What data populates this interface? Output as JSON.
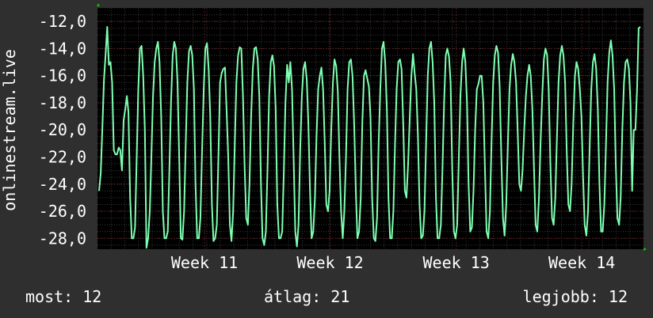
{
  "chart_data": {
    "type": "line",
    "ylabel": "onlinestream.live",
    "ylim": [
      -28.8,
      -11.0
    ],
    "yticks": [
      -12.0,
      -14.0,
      -16.0,
      -18.0,
      -20.0,
      -22.0,
      -24.0,
      -26.0,
      -28.0
    ],
    "ytick_labels": [
      "-12,0",
      "-14,0",
      "-16,0",
      "-18,0",
      "-20,0",
      "-22,0",
      "-24,0",
      "-26,0",
      "-28,0"
    ],
    "xticks": [
      {
        "label": "Week 11",
        "pos": 0.196
      },
      {
        "label": "Week 12",
        "pos": 0.426
      },
      {
        "label": "Week 13",
        "pos": 0.657
      },
      {
        "label": "Week 14",
        "pos": 0.887
      }
    ],
    "grid": true,
    "series": [
      {
        "color": "#7fffb2",
        "values": [
          -24.5,
          -23.2,
          -20.0,
          -16.3,
          -14.4,
          -12.4,
          -15.2,
          -15.0,
          -16.5,
          -21.5,
          -21.8,
          -21.8,
          -21.3,
          -21.5,
          -23.0,
          -19.3,
          -18.5,
          -17.5,
          -18.7,
          -25.0,
          -28.0,
          -28.0,
          -27.2,
          -22.0,
          -17.0,
          -14.0,
          -13.8,
          -16.0,
          -20.0,
          -28.7,
          -28.0,
          -26.0,
          -22.0,
          -17.5,
          -15.0,
          -14.0,
          -13.5,
          -15.0,
          -19.0,
          -26.0,
          -28.0,
          -28.0,
          -27.5,
          -23.0,
          -18.0,
          -14.5,
          -13.5,
          -14.0,
          -16.5,
          -22.0,
          -28.0,
          -28.1,
          -26.0,
          -21.0,
          -16.5,
          -14.2,
          -13.8,
          -14.5,
          -17.0,
          -24.0,
          -28.0,
          -28.0,
          -26.5,
          -21.5,
          -17.0,
          -14.0,
          -13.6,
          -15.5,
          -19.0,
          -25.5,
          -28.2,
          -28.0,
          -27.0,
          -22.0,
          -16.5,
          -15.8,
          -15.5,
          -15.4,
          -18.5,
          -22.0,
          -27.0,
          -28.2,
          -26.0,
          -21.0,
          -16.5,
          -14.5,
          -13.9,
          -14.0,
          -17.5,
          -22.5,
          -26.5,
          -27.0,
          -24.0,
          -19.0,
          -15.5,
          -14.0,
          -13.9,
          -14.8,
          -17.5,
          -24.0,
          -28.0,
          -28.5,
          -27.5,
          -23.0,
          -17.5,
          -15.0,
          -14.5,
          -15.3,
          -18.5,
          -25.5,
          -28.0,
          -28.0,
          -27.5,
          -23.0,
          -18.0,
          -15.2,
          -16.5,
          -15.0,
          -17.0,
          -22.0,
          -27.5,
          -28.6,
          -27.0,
          -21.5,
          -17.5,
          -15.5,
          -15.0,
          -16.3,
          -19.5,
          -24.5,
          -28.0,
          -27.5,
          -25.0,
          -20.5,
          -17.0,
          -16.0,
          -15.4,
          -17.0,
          -21.0,
          -25.5,
          -26.0,
          -24.5,
          -20.0,
          -16.5,
          -14.8,
          -15.3,
          -17.2,
          -22.0,
          -26.0,
          -28.0,
          -26.0,
          -22.0,
          -17.0,
          -15.0,
          -14.8,
          -16.0,
          -19.5,
          -24.5,
          -28.0,
          -27.5,
          -25.0,
          -19.5,
          -16.0,
          -15.6,
          -16.2,
          -16.8,
          -19.0,
          -25.0,
          -28.0,
          -28.2,
          -26.5,
          -21.0,
          -17.0,
          -14.0,
          -13.5,
          -15.0,
          -18.5,
          -25.0,
          -28.0,
          -28.0,
          -26.0,
          -21.0,
          -17.0,
          -15.0,
          -14.8,
          -15.5,
          -19.5,
          -24.5,
          -25.0,
          -22.5,
          -19.0,
          -16.0,
          -14.4,
          -15.8,
          -17.0,
          -20.5,
          -25.5,
          -28.0,
          -27.8,
          -26.0,
          -21.0,
          -16.0,
          -14.0,
          -13.5,
          -15.0,
          -18.0,
          -25.0,
          -28.0,
          -28.0,
          -27.0,
          -23.0,
          -18.0,
          -14.5,
          -14.0,
          -14.6,
          -16.5,
          -23.0,
          -27.5,
          -28.0,
          -27.0,
          -22.0,
          -17.5,
          -15.0,
          -14.0,
          -15.0,
          -18.0,
          -24.0,
          -27.5,
          -27.2,
          -24.5,
          -20.0,
          -17.0,
          -16.6,
          -16.0,
          -16.0,
          -18.0,
          -23.0,
          -27.5,
          -28.0,
          -26.0,
          -21.0,
          -16.5,
          -14.5,
          -13.8,
          -14.3,
          -16.8,
          -22.0,
          -26.5,
          -27.8,
          -25.5,
          -21.0,
          -17.0,
          -15.2,
          -14.4,
          -15.0,
          -16.5,
          -20.0,
          -24.0,
          -24.5,
          -23.0,
          -20.0,
          -17.5,
          -16.0,
          -15.2,
          -16.0,
          -18.5,
          -23.0,
          -27.0,
          -27.5,
          -25.0,
          -21.0,
          -17.5,
          -14.8,
          -14.0,
          -14.5,
          -17.0,
          -22.5,
          -26.5,
          -27.0,
          -25.0,
          -20.5,
          -16.5,
          -14.5,
          -13.8,
          -14.5,
          -16.5,
          -21.5,
          -25.5,
          -26.0,
          -24.0,
          -19.5,
          -16.0,
          -15.0,
          -15.5,
          -17.0,
          -19.0,
          -23.5,
          -27.0,
          -27.8,
          -26.0,
          -21.5,
          -17.0,
          -15.0,
          -14.4,
          -15.5,
          -18.5,
          -24.0,
          -27.5,
          -27.5,
          -25.5,
          -21.0,
          -16.5,
          -14.3,
          -13.4,
          -14.5,
          -17.0,
          -22.5,
          -26.5,
          -27.0,
          -25.0,
          -20.0,
          -16.5,
          -15.0,
          -14.8,
          -15.5,
          -18.0,
          -24.5,
          -20.0,
          -20.0,
          -17.0,
          -12.5,
          -12.4
        ]
      }
    ]
  },
  "stats": {
    "now_label": "most:",
    "now_value": "12",
    "avg_label": "átlag:",
    "avg_value": "21",
    "best_label": "legjobb:",
    "best_value": "12"
  },
  "colors": {
    "background": "#2f2f2f",
    "plot_background": "#000000",
    "grid_major": "#5a1a1a",
    "grid_minor": "#3a3a3a",
    "line": "#7fffb2",
    "axis_arrow": "#00cc00",
    "text": "#ffffff"
  }
}
